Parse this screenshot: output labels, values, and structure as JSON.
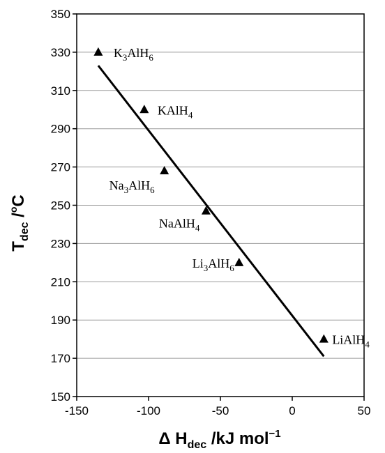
{
  "chart_data": {
    "type": "scatter",
    "title": "",
    "xlabel": {
      "prefix": "Δ H",
      "sub": "dec",
      "unit": " /kJ mol",
      "sup": "−1"
    },
    "ylabel": {
      "main": "T",
      "sub": "dec",
      "rest": " /",
      "sup": "o",
      "unit": "C"
    },
    "xlim": [
      -150,
      50
    ],
    "ylim": [
      150,
      350
    ],
    "xticks": [
      -150,
      -100,
      -50,
      0,
      50
    ],
    "yticks": [
      150,
      170,
      190,
      210,
      230,
      250,
      270,
      290,
      310,
      330,
      350
    ],
    "grid": "horizontal",
    "marker": "triangle",
    "points": [
      {
        "x": -135,
        "y": 330,
        "label": "K3AlH6",
        "parts": [
          [
            "K",
            ""
          ],
          [
            "3",
            "sub"
          ],
          [
            "AlH",
            ""
          ],
          [
            "6",
            "sub"
          ]
        ]
      },
      {
        "x": -103,
        "y": 300,
        "label": "KAlH4",
        "parts": [
          [
            "KAlH",
            ""
          ],
          [
            "4",
            "sub"
          ]
        ]
      },
      {
        "x": -89,
        "y": 268,
        "label": "Na3AlH6",
        "parts": [
          [
            "Na",
            ""
          ],
          [
            "3",
            "sub"
          ],
          [
            "AlH",
            ""
          ],
          [
            "6",
            "sub"
          ]
        ]
      },
      {
        "x": -60,
        "y": 247,
        "label": "NaAlH4",
        "parts": [
          [
            "NaAlH",
            ""
          ],
          [
            "4",
            "sub"
          ]
        ]
      },
      {
        "x": -37,
        "y": 220,
        "label": "Li3AlH6",
        "parts": [
          [
            "Li",
            ""
          ],
          [
            "3",
            "sub"
          ],
          [
            "AlH",
            ""
          ],
          [
            "6",
            "sub"
          ]
        ]
      },
      {
        "x": 22,
        "y": 180,
        "label": "LiAlH4",
        "parts": [
          [
            "LiAlH",
            ""
          ],
          [
            "4",
            "sub"
          ]
        ]
      }
    ],
    "fit_line": {
      "x": [
        -135,
        22
      ],
      "y": [
        323,
        171
      ]
    }
  }
}
